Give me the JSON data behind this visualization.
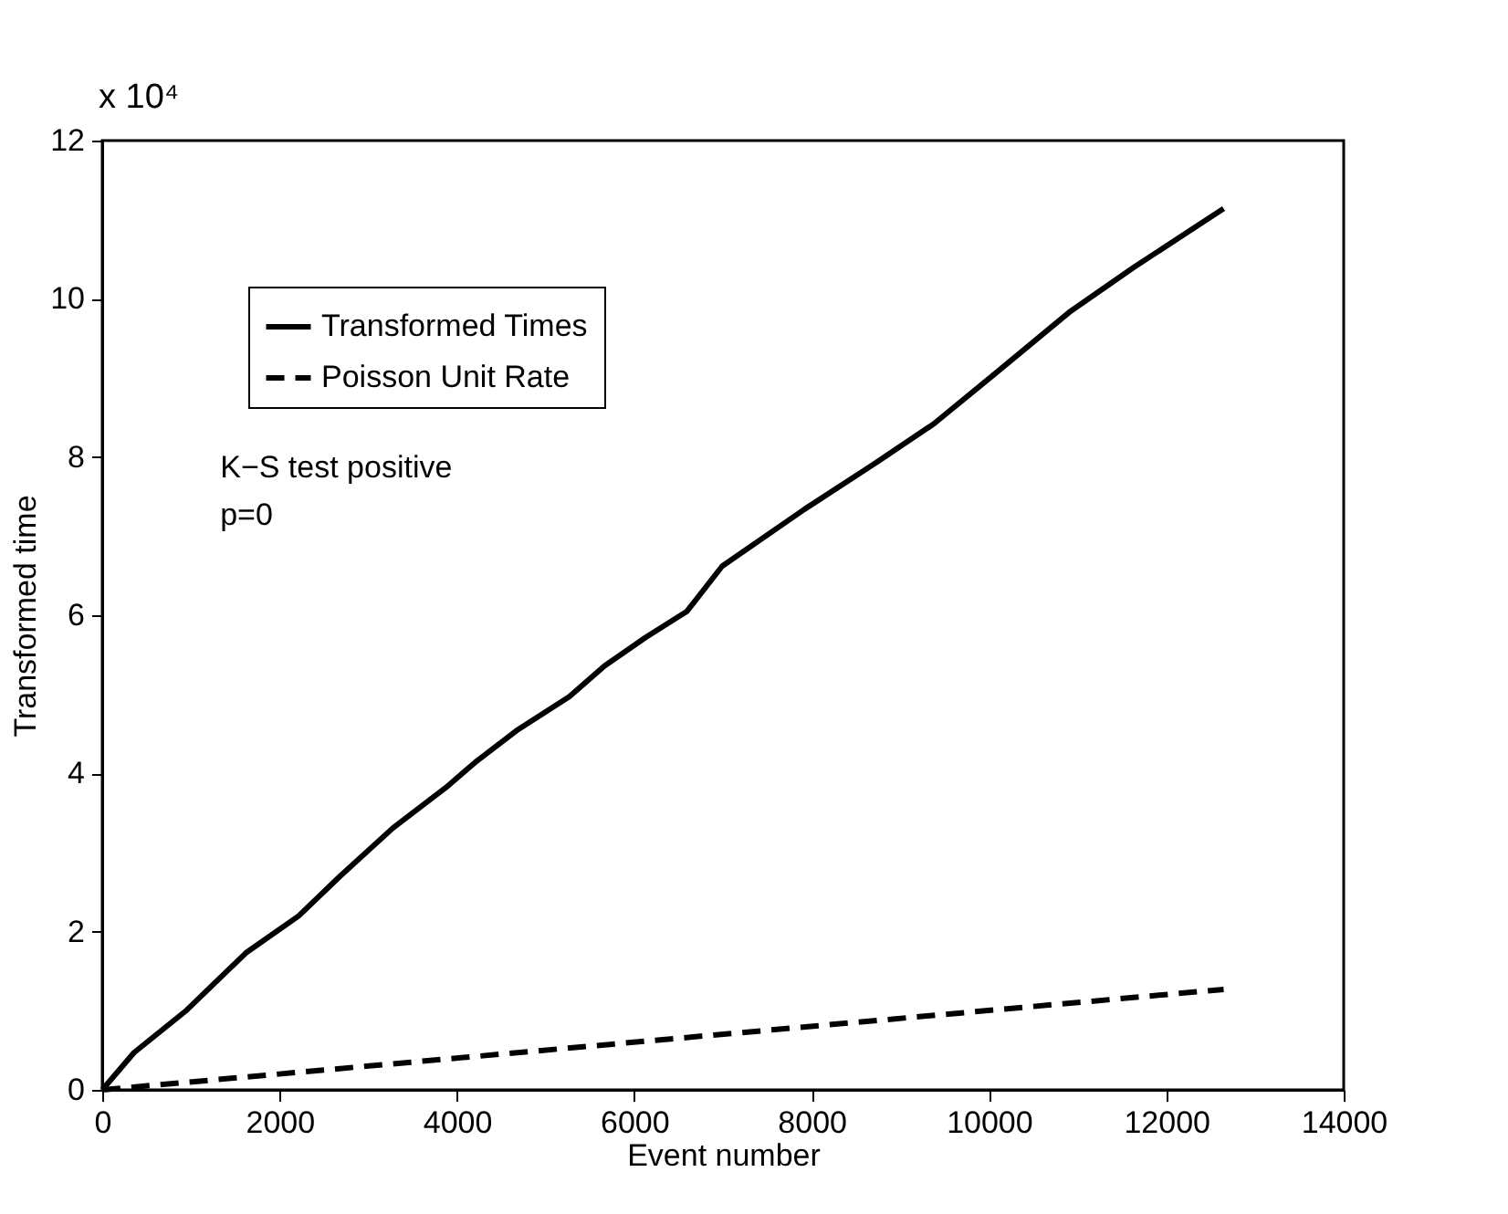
{
  "chart_data": {
    "type": "line",
    "xlabel": "Event number",
    "ylabel": "Transformed time",
    "xlim": [
      0,
      14000
    ],
    "xticks": [
      0,
      2000,
      4000,
      6000,
      8000,
      10000,
      12000,
      14000
    ],
    "ylim": [
      0,
      12
    ],
    "yticks": [
      0,
      2,
      4,
      6,
      8,
      10,
      12
    ],
    "annotations": [
      "x 10⁴",
      "K−S test positive",
      "p=0"
    ],
    "legend": "top left",
    "marker": "none",
    "grid": false,
    "series": [
      {
        "name": "Transformed Times",
        "color": "#000000",
        "line_style": "solid",
        "x": [
          0,
          358,
          955,
          1619,
          2216,
          2681,
          3278,
          3874,
          4206,
          4670,
          5267,
          5665,
          6129,
          6594,
          6991,
          7920,
          8716,
          9379,
          10043,
          10905,
          11635,
          12646
        ],
        "values": [
          0,
          0.47,
          1.01,
          1.73,
          2.2,
          2.7,
          3.31,
          3.82,
          4.14,
          4.54,
          4.97,
          5.36,
          5.72,
          6.05,
          6.62,
          7.34,
          7.92,
          8.42,
          9.03,
          9.83,
          10.4,
          11.14
        ]
      },
      {
        "name": "Poisson Unit Rate",
        "color": "#000000",
        "line_style": "dashed",
        "x": [
          0,
          12646
        ],
        "values": [
          0,
          1.27
        ]
      }
    ]
  }
}
